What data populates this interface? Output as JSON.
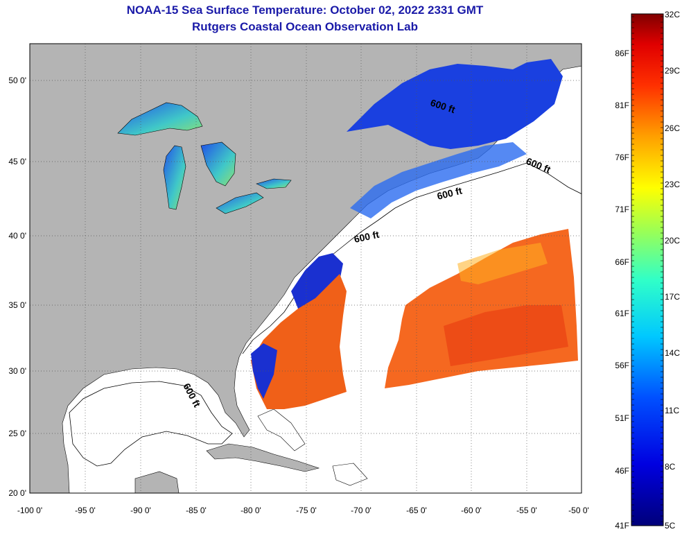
{
  "title": {
    "line1": "NOAA-15 Sea Surface Temperature:  October 02, 2022 2331 GMT",
    "line2": "Rutgers Coastal Ocean Observation Lab"
  },
  "axes": {
    "lon_labels": [
      "-100 0'",
      "-95 0'",
      "-90 0'",
      "-85 0'",
      "-80 0'",
      "-75 0'",
      "-70 0'",
      "-65 0'",
      "-60 0'",
      "-55 0'",
      "-50 0'"
    ],
    "lat_labels": [
      "50 0'",
      "45 0'",
      "40 0'",
      "35 0'",
      "30 0'",
      "25 0'",
      "20 0'"
    ]
  },
  "isobath_labels": [
    "600 ft",
    "600 ft",
    "600 ft",
    "600 ft",
    "600 ft"
  ],
  "colorbar": {
    "f_labels": [
      "86F",
      "81F",
      "76F",
      "71F",
      "66F",
      "61F",
      "56F",
      "51F",
      "46F",
      "41F"
    ],
    "c_labels": [
      "32C",
      "29C",
      "26C",
      "23C",
      "20C",
      "17C",
      "14C",
      "11C",
      "8C",
      "5C"
    ]
  },
  "colors": {
    "land": "#b4b4b4",
    "ocean": "#ffffff",
    "title": "#1a1aa8",
    "warm_sst": "#f06018",
    "cold_sst": "#1838d8",
    "lakes": "#40c0c8"
  }
}
